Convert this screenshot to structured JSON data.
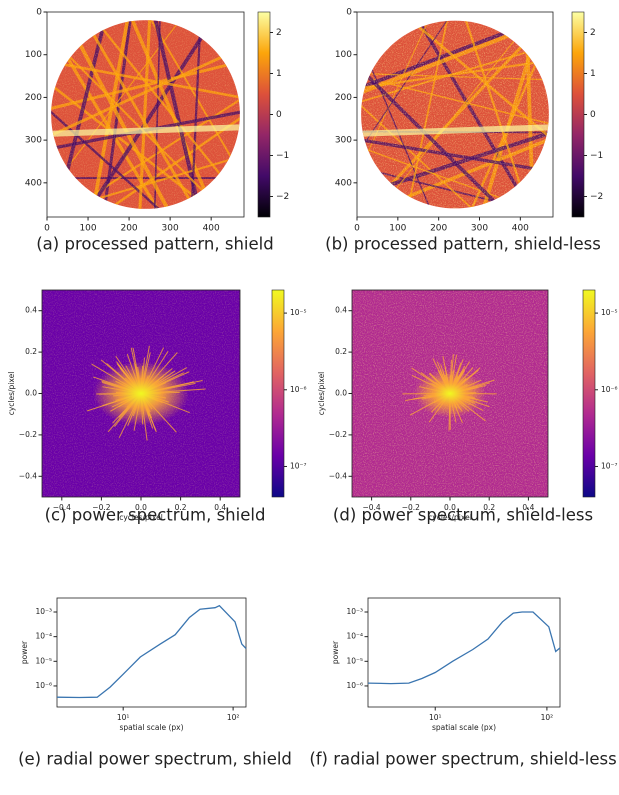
{
  "chart_data": [
    {
      "type": "image",
      "caption": "(a) processed pattern, shield",
      "cmap": "inferno",
      "xlim": [
        0,
        480
      ],
      "ylim": [
        480,
        0
      ],
      "xticks": [
        0,
        100,
        200,
        300,
        400
      ],
      "yticks": [
        0,
        100,
        200,
        300,
        400
      ],
      "colorbar": {
        "lim": [
          -2.5,
          2.5
        ],
        "ticks": [
          2,
          1,
          0,
          {
            "value": -1,
            "label": "−1"
          },
          {
            "value": -2,
            "label": "−2"
          }
        ]
      }
    },
    {
      "type": "image",
      "caption": "(b) processed pattern, shield-less",
      "cmap": "inferno",
      "xlim": [
        0,
        480
      ],
      "ylim": [
        480,
        0
      ],
      "xticks": [
        0,
        100,
        200,
        300,
        400
      ],
      "yticks": [
        0,
        100,
        200,
        300,
        400
      ],
      "colorbar": {
        "lim": [
          -2.5,
          2.5
        ],
        "ticks": [
          2,
          1,
          0,
          {
            "value": -1,
            "label": "−1"
          },
          {
            "value": -2,
            "label": "−2"
          }
        ]
      }
    },
    {
      "type": "spectrum",
      "caption": "(c) power spectrum, shield",
      "cmap": "plasma",
      "xlabel": "cycles/pixel",
      "ylabel": "cycles/pixel",
      "xlim": [
        -0.5,
        0.5
      ],
      "ylim": [
        -0.5,
        0.5
      ],
      "xticks": [
        {
          "value": -0.4,
          "label": "−0.4"
        },
        {
          "value": -0.2,
          "label": "−0.2"
        },
        {
          "value": 0,
          "label": "0.0"
        },
        0.2,
        0.4
      ],
      "yticks": [
        {
          "value": -0.4,
          "label": "−0.4"
        },
        {
          "value": -0.2,
          "label": "−0.2"
        },
        {
          "value": 0,
          "label": "0.0"
        },
        0.2,
        0.4
      ],
      "colorbar": {
        "log": true,
        "lim": [
          4e-08,
          2e-05
        ],
        "ticks": [
          {
            "value": 1e-05,
            "label": "10⁻⁵"
          },
          {
            "value": 1e-06,
            "label": "10⁻⁶"
          },
          {
            "value": 1e-07,
            "label": "10⁻⁷"
          }
        ]
      }
    },
    {
      "type": "spectrum",
      "caption": "(d) power spectrum, shield-less",
      "cmap": "plasma",
      "xlabel": "cycles/pixel",
      "ylabel": "cycles/pixel",
      "xlim": [
        -0.5,
        0.5
      ],
      "ylim": [
        -0.5,
        0.5
      ],
      "xticks": [
        {
          "value": -0.4,
          "label": "−0.4"
        },
        {
          "value": -0.2,
          "label": "−0.2"
        },
        {
          "value": 0,
          "label": "0.0"
        },
        0.2,
        0.4
      ],
      "yticks": [
        {
          "value": -0.4,
          "label": "−0.4"
        },
        {
          "value": -0.2,
          "label": "−0.2"
        },
        {
          "value": 0,
          "label": "0.0"
        },
        0.2,
        0.4
      ],
      "colorbar": {
        "log": true,
        "lim": [
          4e-08,
          2e-05
        ],
        "ticks": [
          {
            "value": 1e-05,
            "label": "10⁻⁵"
          },
          {
            "value": 1e-06,
            "label": "10⁻⁶"
          },
          {
            "value": 1e-07,
            "label": "10⁻⁷"
          }
        ]
      }
    },
    {
      "type": "line",
      "caption": "(e) radial power spectrum, shield",
      "xlabel": "spatial scale (px)",
      "ylabel": "power",
      "log_x": true,
      "log_y": true,
      "color": "#3a75b0",
      "xlim": [
        2.5,
        131
      ],
      "ylim": [
        1.4e-07,
        0.0037
      ],
      "xticks": [
        {
          "value": 10,
          "label": "10¹"
        },
        {
          "value": 100,
          "label": "10²"
        }
      ],
      "yticks": [
        {
          "value": 1e-06,
          "label": "10⁻⁶"
        },
        {
          "value": 1e-05,
          "label": "10⁻⁵"
        },
        {
          "value": 0.0001,
          "label": "10⁻⁴"
        },
        {
          "value": 0.001,
          "label": "10⁻³"
        }
      ],
      "x": [
        2.5,
        4,
        5.8,
        7.6,
        10,
        14.3,
        21.7,
        29.7,
        40,
        50,
        68.6,
        75,
        104,
        120,
        131
      ],
      "values": [
        3.5e-07,
        3.4e-07,
        3.5e-07,
        9e-07,
        3e-06,
        1.5e-05,
        5e-05,
        0.00012,
        0.0006,
        0.0013,
        0.0015,
        0.0018,
        0.0004,
        5e-05,
        3.3e-05
      ]
    },
    {
      "type": "line",
      "caption": "(f) radial power spectrum, shield-less",
      "xlabel": "spatial scale (px)",
      "ylabel": "power",
      "log_x": true,
      "log_y": true,
      "color": "#3a75b0",
      "xlim": [
        2.5,
        131
      ],
      "ylim": [
        1.4e-07,
        0.0037
      ],
      "xticks": [
        {
          "value": 10,
          "label": "10¹"
        },
        {
          "value": 100,
          "label": "10²"
        }
      ],
      "yticks": [
        {
          "value": 1e-06,
          "label": "10⁻⁶"
        },
        {
          "value": 1e-05,
          "label": "10⁻⁵"
        },
        {
          "value": 0.0001,
          "label": "10⁻⁴"
        },
        {
          "value": 0.001,
          "label": "10⁻³"
        }
      ],
      "x": [
        2.5,
        4,
        5.8,
        7.6,
        10,
        14.3,
        21.7,
        29.7,
        40,
        50,
        60,
        75,
        104,
        120,
        131
      ],
      "values": [
        1.3e-06,
        1.25e-06,
        1.3e-06,
        2e-06,
        3.5e-06,
        1e-05,
        3e-05,
        8e-05,
        0.0004,
        0.0009,
        0.001,
        0.001,
        0.00025,
        2.5e-05,
        3.5e-05
      ]
    }
  ]
}
